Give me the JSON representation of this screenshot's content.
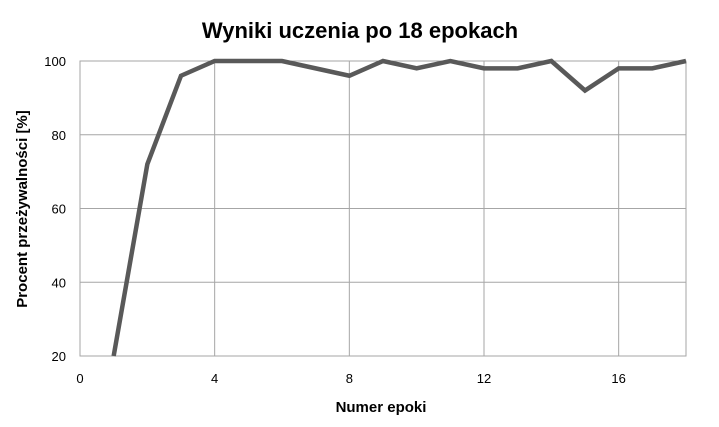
{
  "chart_data": {
    "type": "line",
    "title": "Wyniki uczenia po 18 epokach",
    "xlabel": "Numer epoki",
    "ylabel": "Procent przeżywalności [%]",
    "xlim": [
      0,
      18
    ],
    "ylim": [
      20,
      100
    ],
    "x_ticks": [
      0,
      4,
      8,
      12,
      16
    ],
    "y_ticks": [
      20,
      40,
      60,
      80,
      100
    ],
    "grid": true,
    "series_color": "#595959",
    "series": [
      {
        "x": [
          1,
          2,
          3,
          4,
          5,
          6,
          7,
          8,
          9,
          10,
          11,
          12,
          13,
          14,
          15,
          16,
          17,
          18
        ],
        "values": [
          20,
          72,
          96,
          100,
          100,
          100,
          98,
          96,
          100,
          98,
          100,
          98,
          98,
          100,
          92,
          98,
          98,
          100
        ]
      }
    ]
  }
}
